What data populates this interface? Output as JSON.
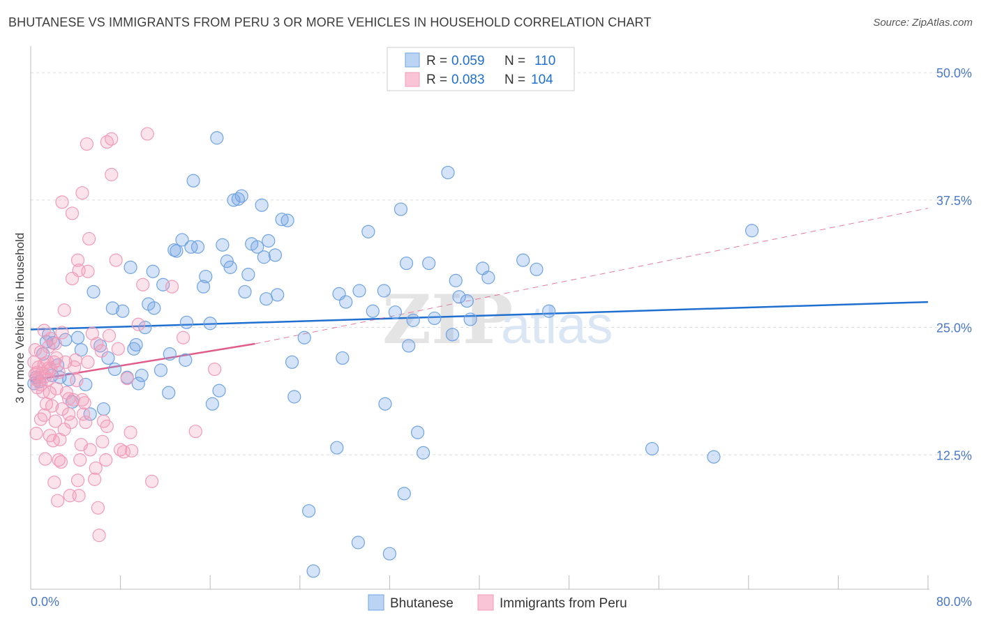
{
  "title": "BHUTANESE VS IMMIGRANTS FROM PERU 3 OR MORE VEHICLES IN HOUSEHOLD CORRELATION CHART",
  "source": "Source: ZipAtlas.com",
  "watermark": {
    "zip": "ZIP",
    "atlas": "atlas"
  },
  "colors": {
    "blue": "#6fa3e3",
    "blue_line": "#1f6fd0",
    "pink": "#f29bb8",
    "pink_line": "#e05c8a",
    "tick_label": "#4a78c8",
    "grid": "#dddddd"
  },
  "legend_box": {
    "rows": [
      {
        "r_label": "R =",
        "r_value": "0.059",
        "n_label": "N =",
        "n_value": "110"
      },
      {
        "r_label": "R =",
        "r_value": "0.083",
        "n_label": "N =",
        "n_value": "104"
      }
    ]
  },
  "chart_data": {
    "type": "scatter",
    "xlabel": "",
    "ylabel": "3 or more Vehicles in Household",
    "xlim": [
      0,
      80
    ],
    "ylim": [
      0,
      52
    ],
    "x_tick_labels": [
      "0.0%",
      "80.0%"
    ],
    "y_ticks": [
      12.5,
      25.0,
      37.5,
      50.0
    ],
    "y_tick_labels": [
      "12.5%",
      "25.0%",
      "37.5%",
      "50.0%"
    ],
    "legend": [
      "Bhutanese",
      "Immigrants from Peru"
    ],
    "series": [
      {
        "name": "Bhutanese",
        "R": 0.059,
        "N": 110,
        "trend": {
          "x": [
            0,
            80
          ],
          "y": [
            24.8,
            27.5
          ],
          "style": "solid"
        },
        "points": [
          [
            0.5,
            20.1
          ],
          [
            0.8,
            19.7
          ],
          [
            1.1,
            22.4
          ],
          [
            1.4,
            23.6
          ],
          [
            1.6,
            24.3
          ],
          [
            1.9,
            20.3
          ],
          [
            2.4,
            21.3
          ],
          [
            2.6,
            20.1
          ],
          [
            3.1,
            23.8
          ],
          [
            3.4,
            19.9
          ],
          [
            3.7,
            17.7
          ],
          [
            4.2,
            24.0
          ],
          [
            4.5,
            22.8
          ],
          [
            4.9,
            19.4
          ],
          [
            5.3,
            16.5
          ],
          [
            5.6,
            28.5
          ],
          [
            6.2,
            23.2
          ],
          [
            6.9,
            22.0
          ],
          [
            7.3,
            26.9
          ],
          [
            7.5,
            20.9
          ],
          [
            8.2,
            26.6
          ],
          [
            8.6,
            20.1
          ],
          [
            8.9,
            30.9
          ],
          [
            9.2,
            22.9
          ],
          [
            9.6,
            19.5
          ],
          [
            9.9,
            20.3
          ],
          [
            10.2,
            25.0
          ],
          [
            10.5,
            27.3
          ],
          [
            10.9,
            30.5
          ],
          [
            11.0,
            26.9
          ],
          [
            11.6,
            20.8
          ],
          [
            11.8,
            29.2
          ],
          [
            12.3,
            18.6
          ],
          [
            12.4,
            22.4
          ],
          [
            12.8,
            32.6
          ],
          [
            13.0,
            32.5
          ],
          [
            13.5,
            33.6
          ],
          [
            13.8,
            21.8
          ],
          [
            13.9,
            25.5
          ],
          [
            14.3,
            32.9
          ],
          [
            14.5,
            39.4
          ],
          [
            14.9,
            32.9
          ],
          [
            15.4,
            29.0
          ],
          [
            15.6,
            30.0
          ],
          [
            16.2,
            17.5
          ],
          [
            16.6,
            43.6
          ],
          [
            16.8,
            18.8
          ],
          [
            17.1,
            33.1
          ],
          [
            17.5,
            31.5
          ],
          [
            17.8,
            30.9
          ],
          [
            18.1,
            37.5
          ],
          [
            18.5,
            37.6
          ],
          [
            18.8,
            37.9
          ],
          [
            19.1,
            28.5
          ],
          [
            19.4,
            30.2
          ],
          [
            19.7,
            33.2
          ],
          [
            20.2,
            32.9
          ],
          [
            20.6,
            37.0
          ],
          [
            20.8,
            31.9
          ],
          [
            21.2,
            33.5
          ],
          [
            21.8,
            32.1
          ],
          [
            22.0,
            28.2
          ],
          [
            22.4,
            35.6
          ],
          [
            22.9,
            35.5
          ],
          [
            23.3,
            21.6
          ],
          [
            23.5,
            18.2
          ],
          [
            24.4,
            24.0
          ],
          [
            24.8,
            7.0
          ],
          [
            25.2,
            1.1
          ],
          [
            27.3,
            13.2
          ],
          [
            27.5,
            28.3
          ],
          [
            27.8,
            22.0
          ],
          [
            28.1,
            27.5
          ],
          [
            29.2,
            3.9
          ],
          [
            29.3,
            28.6
          ],
          [
            30.1,
            34.4
          ],
          [
            30.5,
            26.6
          ],
          [
            31.5,
            28.6
          ],
          [
            31.6,
            17.5
          ],
          [
            32.0,
            2.8
          ],
          [
            32.5,
            26.5
          ],
          [
            33.0,
            36.6
          ],
          [
            33.3,
            8.7
          ],
          [
            33.5,
            31.3
          ],
          [
            33.7,
            23.2
          ],
          [
            34.1,
            25.7
          ],
          [
            34.5,
            14.7
          ],
          [
            35.0,
            12.7
          ],
          [
            35.5,
            31.3
          ],
          [
            36.0,
            25.9
          ],
          [
            37.2,
            40.2
          ],
          [
            37.6,
            24.3
          ],
          [
            37.9,
            29.6
          ],
          [
            38.2,
            28.0
          ],
          [
            38.9,
            27.6
          ],
          [
            39.2,
            25.8
          ],
          [
            40.3,
            30.8
          ],
          [
            40.8,
            29.9
          ],
          [
            43.9,
            31.6
          ],
          [
            45.1,
            30.7
          ],
          [
            46.2,
            26.6
          ],
          [
            55.4,
            13.1
          ],
          [
            60.9,
            12.3
          ],
          [
            64.3,
            34.5
          ],
          [
            0.3,
            19.5
          ],
          [
            2.0,
            23.5
          ],
          [
            6.5,
            17.0
          ],
          [
            9.4,
            23.3
          ],
          [
            16.0,
            25.4
          ],
          [
            21.0,
            27.8
          ]
        ]
      },
      {
        "name": "Immigrants from Peru",
        "R": 0.083,
        "N": 104,
        "trend": {
          "x": [
            0,
            20
          ],
          "y": [
            19.8,
            23.4
          ],
          "style": "solid",
          "dashed_extension": {
            "x": [
              20,
              80
            ],
            "y": [
              23.4,
              36.7
            ]
          }
        },
        "points": [
          [
            0.3,
            21.6
          ],
          [
            0.4,
            20.4
          ],
          [
            0.5,
            19.9
          ],
          [
            0.5,
            14.6
          ],
          [
            0.6,
            20.6
          ],
          [
            0.7,
            21.1
          ],
          [
            0.8,
            20.1
          ],
          [
            0.9,
            22.6
          ],
          [
            0.9,
            19.4
          ],
          [
            1.0,
            20.5
          ],
          [
            1.1,
            18.7
          ],
          [
            1.2,
            21.4
          ],
          [
            1.2,
            16.4
          ],
          [
            1.3,
            20.2
          ],
          [
            1.4,
            17.5
          ],
          [
            1.5,
            19.9
          ],
          [
            1.6,
            21.0
          ],
          [
            1.7,
            14.4
          ],
          [
            1.7,
            18.6
          ],
          [
            1.8,
            20.9
          ],
          [
            1.9,
            17.3
          ],
          [
            2.0,
            13.9
          ],
          [
            2.1,
            21.6
          ],
          [
            2.2,
            23.4
          ],
          [
            2.2,
            15.8
          ],
          [
            2.3,
            19.0
          ],
          [
            2.4,
            8.0
          ],
          [
            2.5,
            12.0
          ],
          [
            2.6,
            14.0
          ],
          [
            2.7,
            11.8
          ],
          [
            2.8,
            17.0
          ],
          [
            2.8,
            24.5
          ],
          [
            3.0,
            26.7
          ],
          [
            3.1,
            21.6
          ],
          [
            3.2,
            18.6
          ],
          [
            3.4,
            16.5
          ],
          [
            3.5,
            8.5
          ],
          [
            3.6,
            15.7
          ],
          [
            3.7,
            29.8
          ],
          [
            3.8,
            17.9
          ],
          [
            4.0,
            21.8
          ],
          [
            4.1,
            19.8
          ],
          [
            4.2,
            10.0
          ],
          [
            4.3,
            8.5
          ],
          [
            4.4,
            12.0
          ],
          [
            4.5,
            13.5
          ],
          [
            4.6,
            17.9
          ],
          [
            4.7,
            16.5
          ],
          [
            4.8,
            17.6
          ],
          [
            4.9,
            15.7
          ],
          [
            5.1,
            21.6
          ],
          [
            5.3,
            13.0
          ],
          [
            5.5,
            24.4
          ],
          [
            5.7,
            10.1
          ],
          [
            5.9,
            23.4
          ],
          [
            6.0,
            7.3
          ],
          [
            6.1,
            4.6
          ],
          [
            6.3,
            22.7
          ],
          [
            6.4,
            13.8
          ],
          [
            6.5,
            15.8
          ],
          [
            6.7,
            12.0
          ],
          [
            6.8,
            15.3
          ],
          [
            7.0,
            24.2
          ],
          [
            7.2,
            40.0
          ],
          [
            7.6,
            31.6
          ],
          [
            7.8,
            22.9
          ],
          [
            8.0,
            13.0
          ],
          [
            8.3,
            12.8
          ],
          [
            8.6,
            20.0
          ],
          [
            8.9,
            14.7
          ],
          [
            9.0,
            12.9
          ],
          [
            9.6,
            25.3
          ],
          [
            10.0,
            29.2
          ],
          [
            10.4,
            44.0
          ],
          [
            10.8,
            9.9
          ],
          [
            12.6,
            29.0
          ],
          [
            13.6,
            24.0
          ],
          [
            14.7,
            14.8
          ],
          [
            16.4,
            20.9
          ],
          [
            1.2,
            24.7
          ],
          [
            2.3,
            22.0
          ],
          [
            3.4,
            18.0
          ],
          [
            5.0,
            43.0
          ],
          [
            4.6,
            38.2
          ],
          [
            2.8,
            37.3
          ],
          [
            3.7,
            36.2
          ],
          [
            5.2,
            33.7
          ],
          [
            4.2,
            31.6
          ],
          [
            4.3,
            30.6
          ],
          [
            5.1,
            30.5
          ],
          [
            6.8,
            43.2
          ],
          [
            7.2,
            43.5
          ],
          [
            1.8,
            23.9
          ],
          [
            0.6,
            19.1
          ],
          [
            1.5,
            21.6
          ],
          [
            2.5,
            20.6
          ],
          [
            3.9,
            21.1
          ],
          [
            0.9,
            16.0
          ],
          [
            1.3,
            12.1
          ],
          [
            2.1,
            9.8
          ],
          [
            3.0,
            15.0
          ],
          [
            5.8,
            11.2
          ],
          [
            0.4,
            22.8
          ],
          [
            1.6,
            23.1
          ]
        ]
      }
    ]
  }
}
